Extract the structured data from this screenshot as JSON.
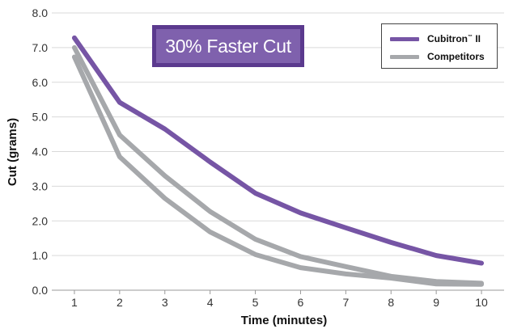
{
  "chart_data": {
    "type": "line",
    "title": "",
    "xlabel": "Time (minutes)",
    "ylabel": "Cut (grams)",
    "x": [
      1,
      2,
      3,
      4,
      5,
      6,
      7,
      8,
      9,
      10
    ],
    "xlim": [
      0.5,
      10.5
    ],
    "ylim": [
      0,
      8
    ],
    "yticks": [
      "0.0",
      "1.0",
      "2.0",
      "3.0",
      "4.0",
      "5.0",
      "6.0",
      "7.0",
      "8.0"
    ],
    "grid": "horizontal",
    "legend_position": "top-right",
    "series": [
      {
        "name": "Cubitron™ II",
        "color": "#7655a5",
        "values": [
          7.28,
          5.42,
          4.65,
          3.7,
          2.8,
          2.23,
          1.8,
          1.38,
          1.0,
          0.78
        ]
      },
      {
        "name": "Competitors",
        "color": "#a6a8ab",
        "values": [
          7.0,
          4.48,
          3.3,
          2.27,
          1.47,
          0.97,
          0.68,
          0.4,
          0.25,
          0.2
        ]
      },
      {
        "name": "",
        "color": "#a6a8ab",
        "values": [
          6.73,
          3.85,
          2.65,
          1.68,
          1.03,
          0.65,
          0.47,
          0.35,
          0.18,
          0.17
        ]
      }
    ],
    "annotation": "30% Faster Cut"
  },
  "legend": {
    "cubitron_main": "Cubitron",
    "cubitron_tm": "™",
    "cubitron_suffix": " II",
    "competitors": "Competitors"
  },
  "colors": {
    "callout_fill": "#7f61ad",
    "callout_border": "#5b3a8e",
    "gridline": "#d9d9d9",
    "axis": "#999999"
  }
}
